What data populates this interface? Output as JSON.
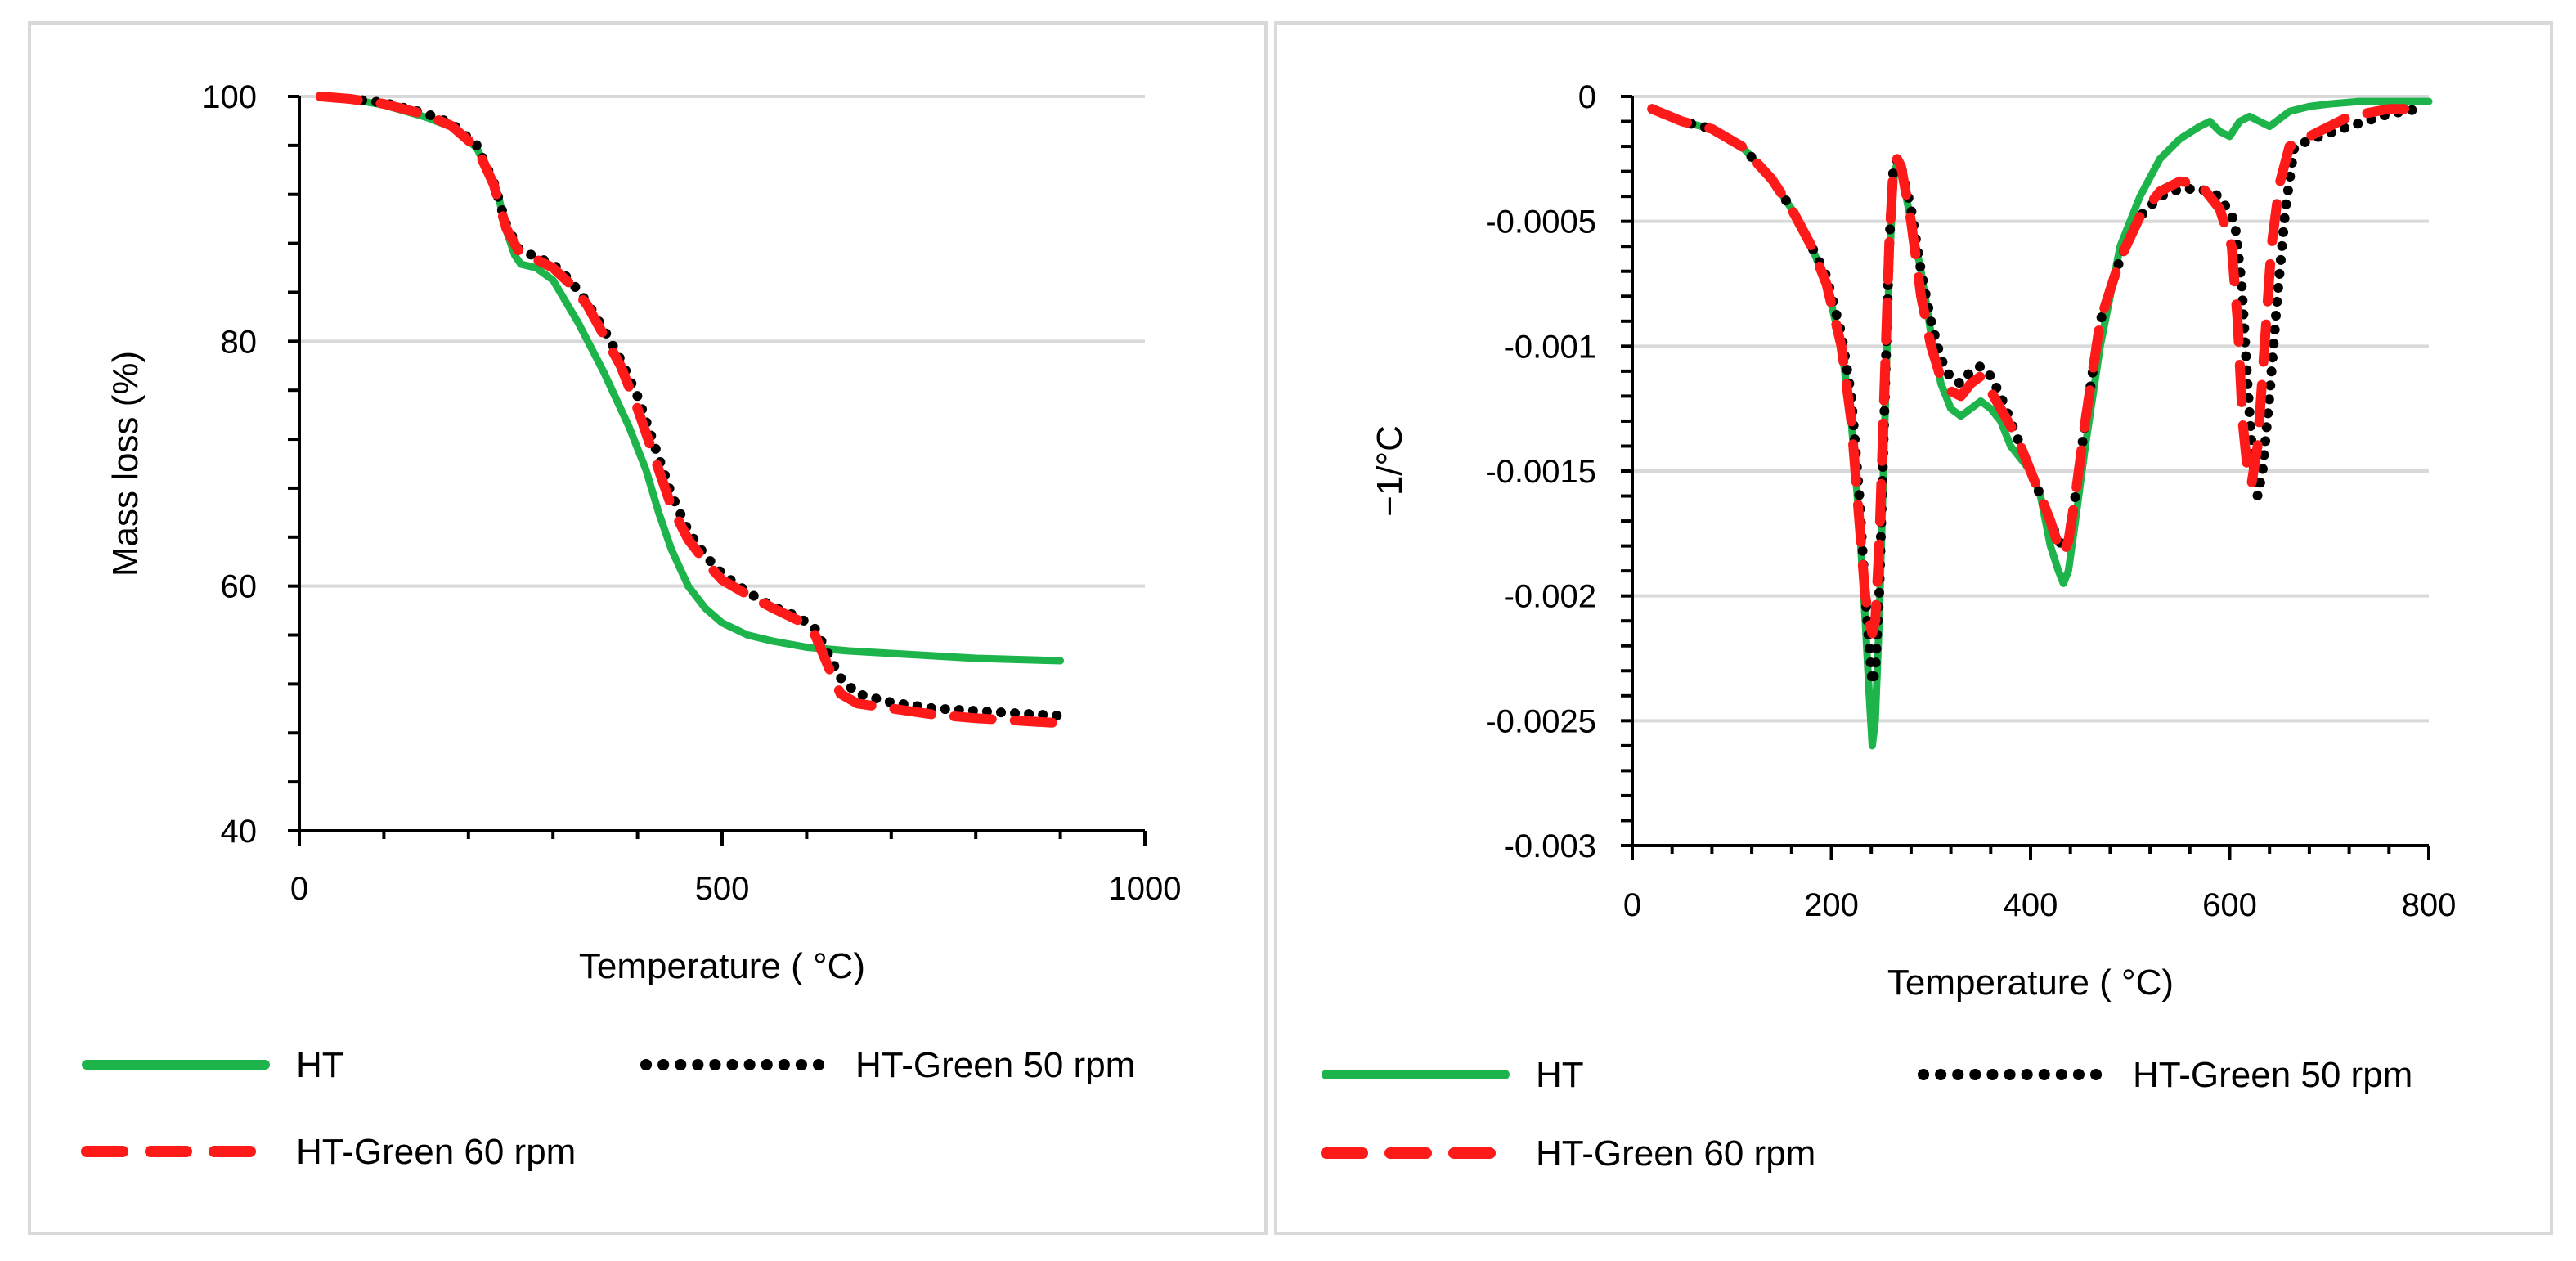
{
  "chart_data": [
    {
      "type": "line",
      "xlabel": "Temperature ( °C)",
      "ylabel": "Mass loss (%)",
      "xlim": [
        0,
        1000
      ],
      "ylim": [
        40,
        100
      ],
      "xticks": [
        "0",
        "500",
        "1000"
      ],
      "yticks": [
        "40",
        "60",
        "80",
        "100"
      ],
      "grid": true,
      "legend_position": "bottom",
      "series": [
        {
          "name": "HT",
          "style": "solid",
          "color": "#1DB44B",
          "x": [
            25,
            60,
            100,
            150,
            180,
            210,
            235,
            245,
            255,
            262,
            280,
            300,
            330,
            360,
            390,
            410,
            425,
            440,
            460,
            480,
            500,
            530,
            560,
            600,
            650,
            700,
            750,
            800,
            850,
            900
          ],
          "y": [
            100,
            99.8,
            99.3,
            98.3,
            97.5,
            95.8,
            92,
            89,
            87,
            86.3,
            86,
            85,
            81.5,
            77.5,
            73,
            69.5,
            66,
            63,
            60,
            58.2,
            57,
            56,
            55.5,
            55,
            54.7,
            54.5,
            54.3,
            54.1,
            54,
            53.9
          ]
        },
        {
          "name": "HT-Green 50 rpm",
          "style": "dotted",
          "color": "#000000",
          "x": [
            25,
            60,
            100,
            150,
            180,
            210,
            230,
            245,
            260,
            280,
            300,
            320,
            340,
            360,
            380,
            400,
            420,
            440,
            460,
            480,
            500,
            530,
            560,
            590,
            610,
            625,
            640,
            660,
            700,
            750,
            800,
            850,
            900
          ],
          "y": [
            100,
            99.8,
            99.5,
            98.6,
            97.8,
            96,
            93,
            89.5,
            87.5,
            86.9,
            86.3,
            85,
            83.2,
            81,
            78.5,
            75.5,
            71.5,
            67.5,
            64.5,
            62.5,
            61,
            59.5,
            58.3,
            57.5,
            56.5,
            54.5,
            52.5,
            51.2,
            50.5,
            50,
            49.8,
            49.6,
            49.4
          ]
        },
        {
          "name": "HT-Green 60 rpm",
          "style": "dashed",
          "color": "#FF1A1A",
          "x": [
            25,
            60,
            100,
            150,
            180,
            210,
            230,
            245,
            260,
            280,
            300,
            320,
            340,
            360,
            380,
            400,
            420,
            440,
            460,
            480,
            500,
            530,
            560,
            590,
            610,
            625,
            640,
            660,
            700,
            750,
            800,
            850,
            900
          ],
          "y": [
            100,
            99.8,
            99.4,
            98.5,
            97.6,
            95.8,
            92.8,
            89.2,
            87.3,
            86.7,
            86,
            84.7,
            83,
            80.5,
            78,
            74.5,
            70.5,
            66.5,
            63.8,
            62,
            60.5,
            59.3,
            58.2,
            57.2,
            56,
            53.5,
            51.2,
            50.4,
            50,
            49.5,
            49.2,
            49,
            48.8
          ]
        }
      ]
    },
    {
      "type": "line",
      "xlabel": "Temperature ( °C)",
      "ylabel": "−1/°C",
      "xlim": [
        0,
        800
      ],
      "ylim": [
        -0.003,
        0
      ],
      "xticks": [
        "0",
        "200",
        "400",
        "600",
        "800"
      ],
      "yticks": [
        "-0.003",
        "-0.0025",
        "-0.002",
        "-0.0015",
        "-0.001",
        "-0.0005",
        "0"
      ],
      "grid": true,
      "legend_position": "bottom",
      "series": [
        {
          "name": "HT",
          "style": "solid",
          "color": "#1DB44B",
          "x": [
            20,
            50,
            80,
            110,
            140,
            160,
            180,
            195,
            210,
            220,
            228,
            234,
            238,
            241,
            244,
            248,
            253,
            258,
            262,
            265,
            270,
            280,
            290,
            300,
            310,
            320,
            330,
            340,
            350,
            360,
            370,
            380,
            390,
            400,
            410,
            420,
            428,
            433,
            438,
            445,
            455,
            470,
            490,
            510,
            530,
            550,
            570,
            580,
            590,
            600,
            610,
            620,
            630,
            640,
            650,
            660,
            680,
            700,
            730,
            760,
            800
          ],
          "y": [
            -5e-05,
            -0.0001,
            -0.00013,
            -0.0002,
            -0.00033,
            -0.00045,
            -0.0006,
            -0.00075,
            -0.001,
            -0.0013,
            -0.0017,
            -0.0021,
            -0.0024,
            -0.0026,
            -0.0025,
            -0.0021,
            -0.0014,
            -0.0007,
            -0.00035,
            -0.00028,
            -0.0003,
            -0.0005,
            -0.0007,
            -0.00095,
            -0.00115,
            -0.00125,
            -0.00128,
            -0.00125,
            -0.00122,
            -0.00125,
            -0.0013,
            -0.0014,
            -0.00145,
            -0.0015,
            -0.0016,
            -0.0018,
            -0.0019,
            -0.00195,
            -0.0019,
            -0.0017,
            -0.0014,
            -0.001,
            -0.0006,
            -0.0004,
            -0.00025,
            -0.00017,
            -0.00012,
            -0.0001,
            -0.00014,
            -0.00016,
            -0.0001,
            -8e-05,
            -0.0001,
            -0.00012,
            -9e-05,
            -6e-05,
            -4e-05,
            -3e-05,
            -2e-05,
            -2e-05,
            -2e-05
          ]
        },
        {
          "name": "HT-Green 50 rpm",
          "style": "dotted",
          "color": "#000000",
          "x": [
            20,
            50,
            80,
            110,
            140,
            160,
            180,
            195,
            210,
            220,
            228,
            234,
            238,
            241,
            244,
            248,
            253,
            258,
            262,
            266,
            270,
            280,
            290,
            300,
            310,
            320,
            330,
            340,
            350,
            360,
            370,
            380,
            390,
            400,
            410,
            420,
            428,
            433,
            438,
            445,
            455,
            470,
            490,
            510,
            530,
            550,
            570,
            590,
            605,
            612,
            618,
            623,
            628,
            633,
            640,
            648,
            656,
            665,
            690,
            720,
            760,
            790
          ],
          "y": [
            -5e-05,
            -0.0001,
            -0.00013,
            -0.0002,
            -0.00033,
            -0.00045,
            -0.0006,
            -0.00072,
            -0.00095,
            -0.0012,
            -0.0016,
            -0.002,
            -0.0022,
            -0.00235,
            -0.0023,
            -0.002,
            -0.0013,
            -0.0006,
            -0.0003,
            -0.00025,
            -0.00028,
            -0.00045,
            -0.0007,
            -0.0009,
            -0.00105,
            -0.00113,
            -0.00115,
            -0.0011,
            -0.00108,
            -0.00112,
            -0.0012,
            -0.0013,
            -0.0014,
            -0.0015,
            -0.0016,
            -0.0017,
            -0.00178,
            -0.0018,
            -0.00178,
            -0.0016,
            -0.0013,
            -0.0009,
            -0.00065,
            -0.00048,
            -0.0004,
            -0.00037,
            -0.00037,
            -0.0004,
            -0.0005,
            -0.00075,
            -0.00115,
            -0.00145,
            -0.0016,
            -0.0015,
            -0.0012,
            -0.0008,
            -0.00045,
            -0.0002,
            -0.00016,
            -0.00012,
            -7e-05,
            -5e-05
          ]
        },
        {
          "name": "HT-Green 60 rpm",
          "style": "dashed",
          "color": "#FF1A1A",
          "x": [
            20,
            50,
            80,
            110,
            140,
            160,
            180,
            195,
            210,
            220,
            228,
            234,
            238,
            241,
            244,
            248,
            253,
            258,
            262,
            266,
            270,
            280,
            290,
            300,
            310,
            320,
            330,
            340,
            350,
            360,
            370,
            380,
            390,
            400,
            410,
            420,
            428,
            433,
            438,
            445,
            455,
            470,
            490,
            510,
            530,
            550,
            570,
            590,
            602,
            608,
            613,
            618,
            622,
            628,
            635,
            642,
            650,
            660,
            690,
            720,
            760,
            790
          ],
          "y": [
            -5e-05,
            -0.0001,
            -0.00013,
            -0.0002,
            -0.00033,
            -0.00045,
            -0.0006,
            -0.00075,
            -0.001,
            -0.0013,
            -0.0017,
            -0.002,
            -0.0021,
            -0.00215,
            -0.0021,
            -0.0018,
            -0.0012,
            -0.0006,
            -0.0003,
            -0.00025,
            -0.00028,
            -0.0005,
            -0.0008,
            -0.001,
            -0.00113,
            -0.00118,
            -0.0012,
            -0.00115,
            -0.00112,
            -0.00118,
            -0.00125,
            -0.00132,
            -0.0014,
            -0.0015,
            -0.0016,
            -0.0017,
            -0.0018,
            -0.00183,
            -0.00178,
            -0.0016,
            -0.0013,
            -0.0009,
            -0.00065,
            -0.00048,
            -0.00038,
            -0.00034,
            -0.00035,
            -0.00045,
            -0.0006,
            -0.0009,
            -0.0013,
            -0.0015,
            -0.00155,
            -0.0014,
            -0.001,
            -0.0006,
            -0.00035,
            -0.0002,
            -0.00014,
            -8e-05,
            -5e-05,
            -5e-05
          ]
        }
      ]
    }
  ]
}
